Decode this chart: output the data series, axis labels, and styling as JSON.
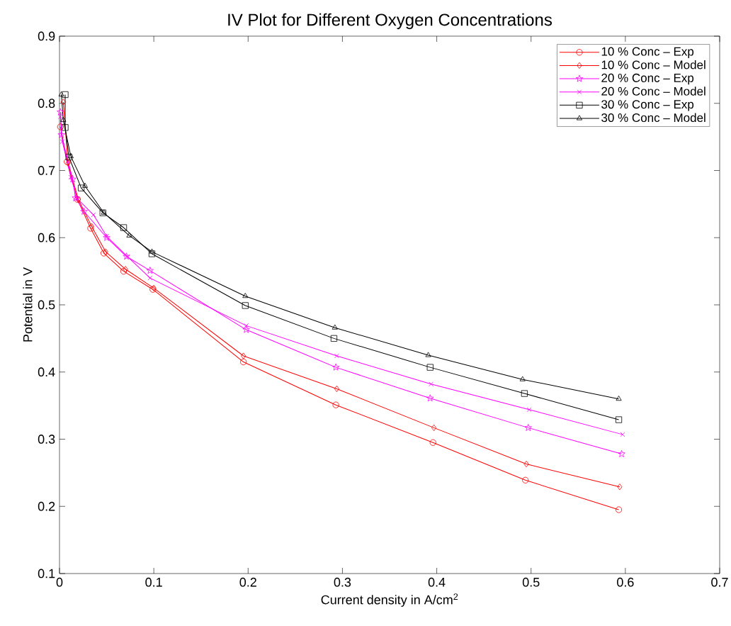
{
  "chart_data": {
    "type": "line",
    "title": "IV Plot for Different Oxygen Concentrations",
    "xlabel": "Current density in A/cm$^{2}$",
    "ylabel": "Potential in V",
    "xlim": [
      0,
      0.7
    ],
    "ylim": [
      0.1,
      0.9
    ],
    "xticks": [
      0,
      0.1,
      0.2,
      0.3,
      0.4,
      0.5,
      0.6,
      0.7
    ],
    "yticks": [
      0.1,
      0.2,
      0.3,
      0.4,
      0.5,
      0.6,
      0.7,
      0.8,
      0.9
    ],
    "grid": false,
    "legend": "top right",
    "line_style": "solid",
    "series": [
      {
        "name": "10 % Conc – Exp",
        "color": "#ff0000",
        "marker": "circle",
        "x": [
          0.001,
          0.008,
          0.019,
          0.033,
          0.047,
          0.068,
          0.099,
          0.195,
          0.293,
          0.396,
          0.494,
          0.593
        ],
        "values": [
          0.765,
          0.713,
          0.657,
          0.614,
          0.577,
          0.55,
          0.523,
          0.415,
          0.351,
          0.295,
          0.239,
          0.195
        ]
      },
      {
        "name": "10 % Conc – Model",
        "color": "#ff0000",
        "marker": "diamond",
        "x": [
          0.004,
          0.009,
          0.02,
          0.034,
          0.049,
          0.07,
          0.1,
          0.195,
          0.294,
          0.397,
          0.495,
          0.594
        ],
        "values": [
          0.802,
          0.711,
          0.657,
          0.617,
          0.579,
          0.553,
          0.525,
          0.424,
          0.375,
          0.317,
          0.263,
          0.229
        ]
      },
      {
        "name": "20 % Conc – Exp",
        "color": "#ff00ff",
        "marker": "star",
        "x": [
          0.001,
          0.002,
          0.014,
          0.017,
          0.026,
          0.05,
          0.071,
          0.096,
          0.198,
          0.293,
          0.393,
          0.497,
          0.596
        ],
        "values": [
          0.787,
          0.753,
          0.687,
          0.659,
          0.639,
          0.6,
          0.572,
          0.551,
          0.463,
          0.407,
          0.361,
          0.317,
          0.278
        ]
      },
      {
        "name": "20 % Conc – Model",
        "color": "#ff00ff",
        "marker": "cross",
        "x": [
          0.001,
          0.003,
          0.012,
          0.019,
          0.036,
          0.05,
          0.072,
          0.096,
          0.198,
          0.294,
          0.394,
          0.498,
          0.597
        ],
        "values": [
          0.78,
          0.743,
          0.69,
          0.658,
          0.634,
          0.602,
          0.572,
          0.54,
          0.469,
          0.424,
          0.382,
          0.344,
          0.307
        ]
      },
      {
        "name": "30 % Conc – Exp",
        "color": "#000000",
        "marker": "square",
        "x": [
          0.006,
          0.006,
          0.01,
          0.023,
          0.046,
          0.068,
          0.098,
          0.197,
          0.291,
          0.393,
          0.493,
          0.593
        ],
        "values": [
          0.813,
          0.764,
          0.72,
          0.674,
          0.637,
          0.615,
          0.576,
          0.499,
          0.45,
          0.407,
          0.368,
          0.329
        ]
      },
      {
        "name": "30 % Conc – Model",
        "color": "#000000",
        "marker": "triangle",
        "x": [
          0.002,
          0.004,
          0.012,
          0.027,
          0.047,
          0.074,
          0.098,
          0.197,
          0.292,
          0.391,
          0.491,
          0.593
        ],
        "values": [
          0.813,
          0.775,
          0.721,
          0.677,
          0.637,
          0.603,
          0.579,
          0.513,
          0.466,
          0.425,
          0.389,
          0.36
        ]
      }
    ]
  }
}
